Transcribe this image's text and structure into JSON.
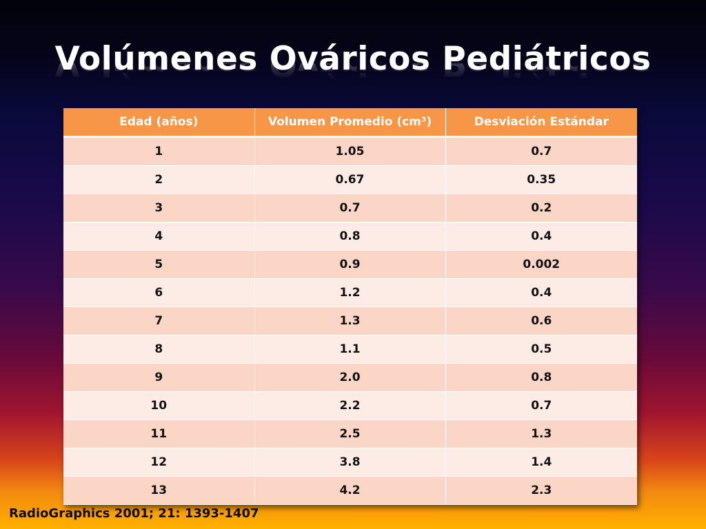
{
  "slide": {
    "title": "Volúmenes Ováricos Pediátricos",
    "citation": "RadioGraphics 2001; 21: 1393-1407",
    "colors": {
      "header_bg": "#f79646",
      "row_odd_bg": "#fbd5c6",
      "row_even_bg": "#fdebe6",
      "title_text": "#ffffff"
    }
  },
  "table": {
    "headers": [
      "Edad  (años)",
      "Volumen Promedio (cm³)",
      "Desviación Estándar"
    ],
    "rows": [
      [
        "1",
        "1.05",
        "0.7"
      ],
      [
        "2",
        "0.67",
        "0.35"
      ],
      [
        "3",
        "0.7",
        "0.2"
      ],
      [
        "4",
        "0.8",
        "0.4"
      ],
      [
        "5",
        "0.9",
        "0.002"
      ],
      [
        "6",
        "1.2",
        "0.4"
      ],
      [
        "7",
        "1.3",
        "0.6"
      ],
      [
        "8",
        "1.1",
        "0.5"
      ],
      [
        "9",
        "2.0",
        "0.8"
      ],
      [
        "10",
        "2.2",
        "0.7"
      ],
      [
        "11",
        "2.5",
        "1.3"
      ],
      [
        "12",
        "3.8",
        "1.4"
      ],
      [
        "13",
        "4.2",
        "2.3"
      ]
    ]
  }
}
